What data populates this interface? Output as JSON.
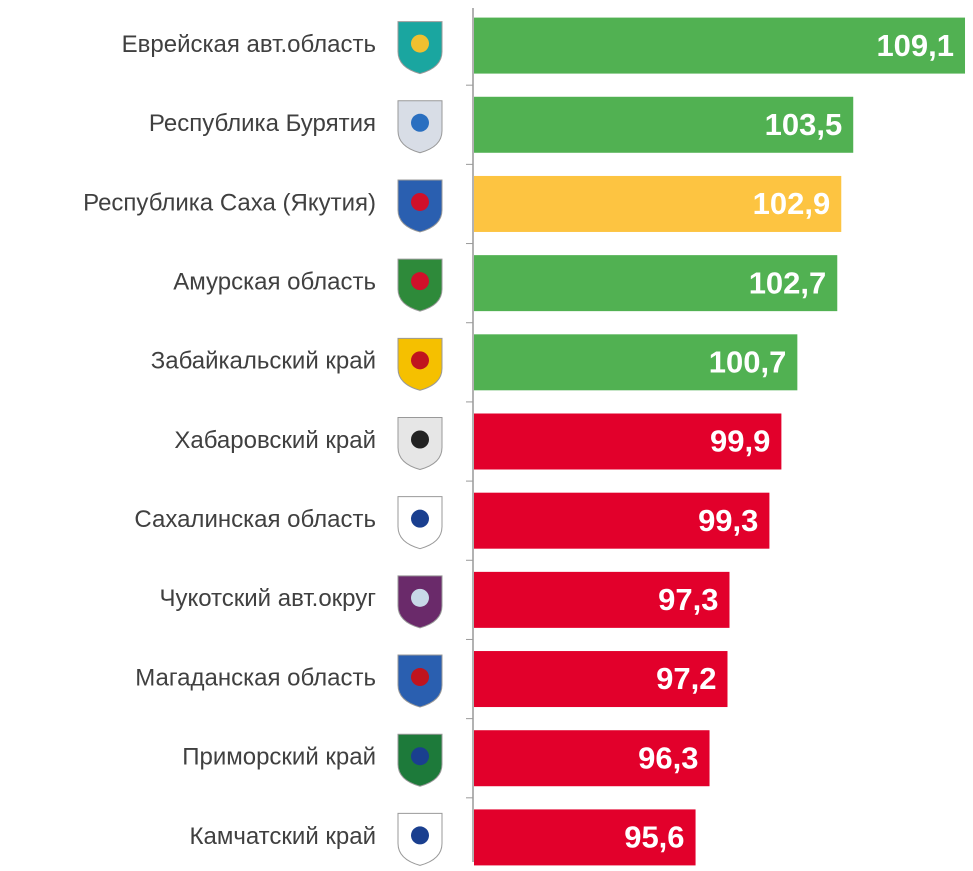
{
  "chart_data": {
    "type": "barh",
    "categories": [
      "Еврейская авт.область",
      "Республика Бурятия",
      "Республика Саха (Якутия)",
      "Амурская область",
      "Забайкальский край",
      "Хабаровский край",
      "Сахалинская область",
      "Чукотский авт.округ",
      "Магаданская область",
      "Приморский край",
      "Камчатский край"
    ],
    "values": [
      109.1,
      103.5,
      102.9,
      102.7,
      100.7,
      99.9,
      99.3,
      97.3,
      97.2,
      96.3,
      95.6
    ],
    "value_labels": [
      "109,1",
      "103,5",
      "102,9",
      "102,7",
      "100,7",
      "99,9",
      "99,3",
      "97,3",
      "97,2",
      "96,3",
      "95,6"
    ],
    "colors": [
      "#51b152",
      "#51b152",
      "#fdc441",
      "#51b152",
      "#51b152",
      "#e2002b",
      "#e2002b",
      "#e2002b",
      "#e2002b",
      "#e2002b",
      "#e2002b"
    ],
    "xlim": [
      84.5,
      109.5
    ]
  }
}
